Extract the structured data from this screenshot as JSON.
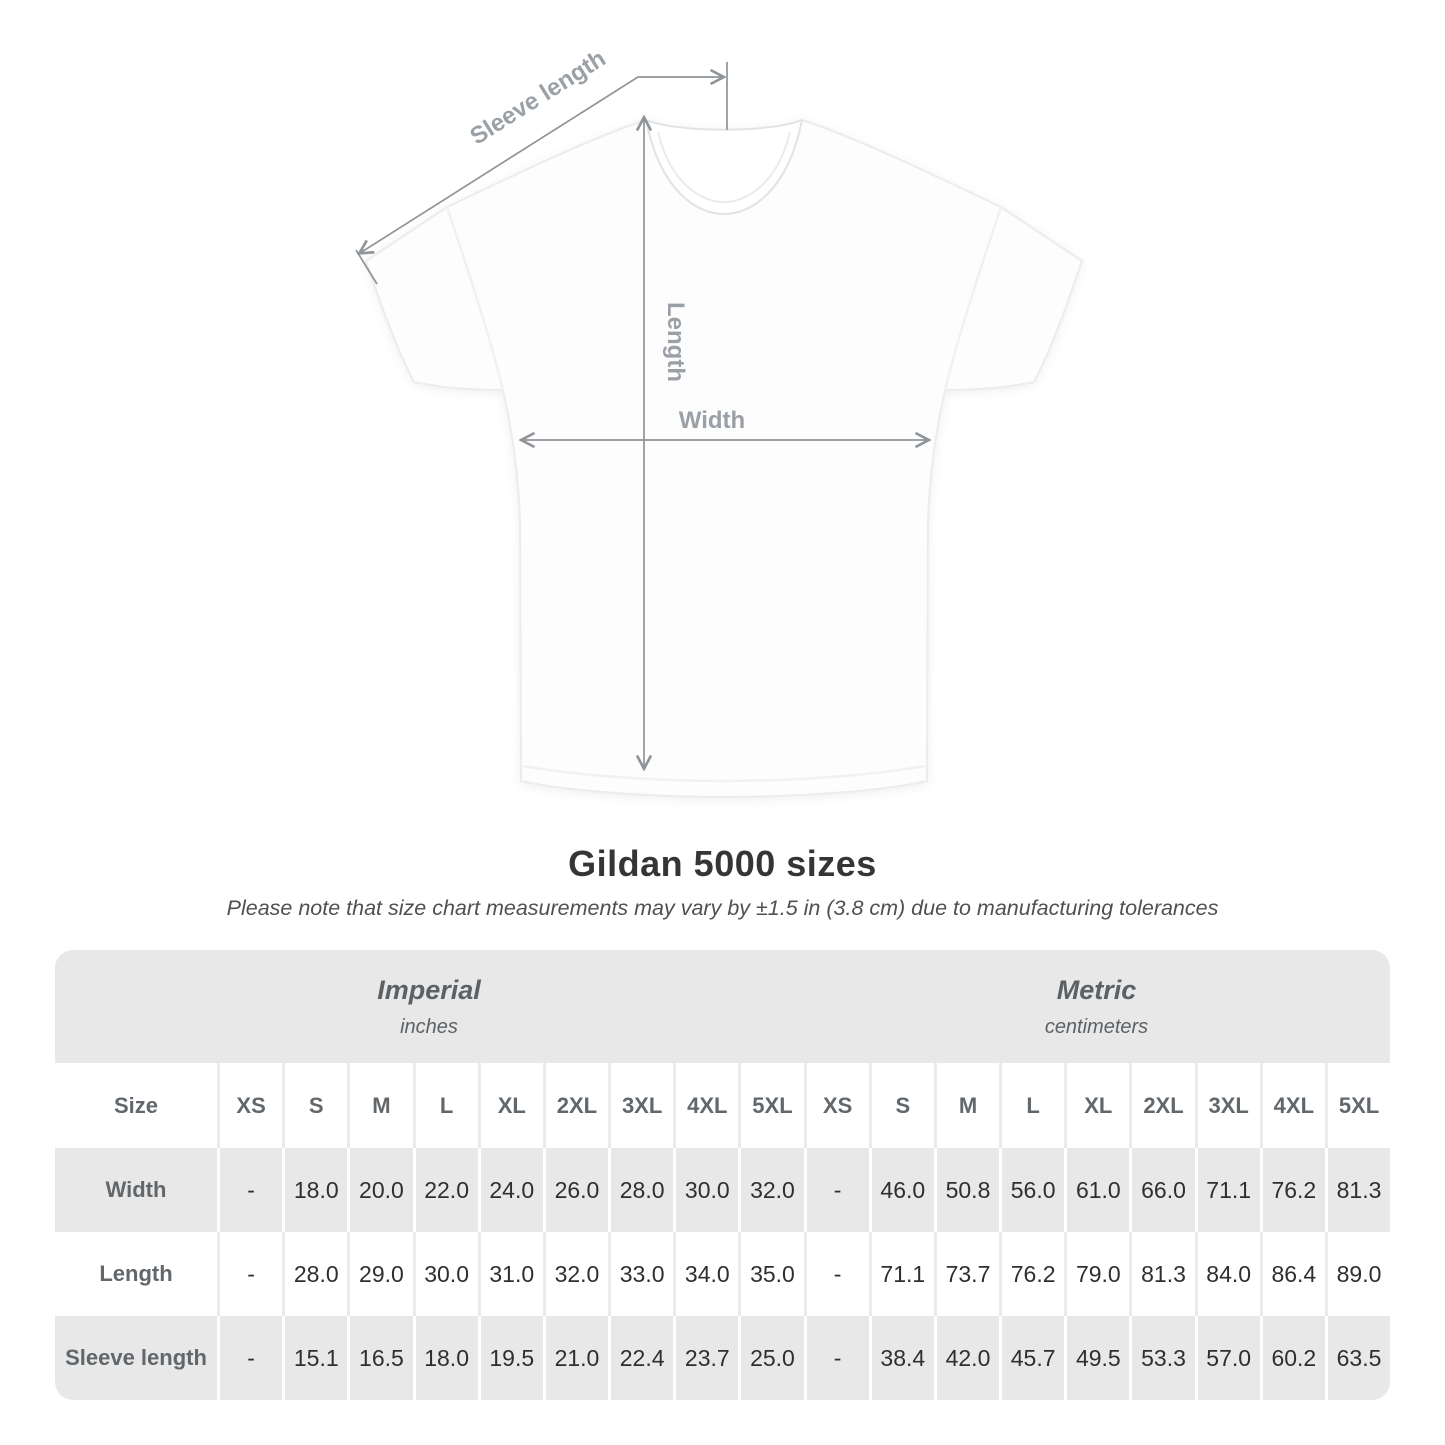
{
  "diagram": {
    "sleeve_label": "Sleeve length",
    "length_label": "Length",
    "width_label": "Width",
    "line_color": "#8f9499",
    "label_color": "#9aa0a6"
  },
  "heading": {
    "title": "Gildan 5000 sizes",
    "subtitle": "Please note that size chart measurements may vary by ±1.5 in (3.8 cm) due to manufacturing tolerances"
  },
  "chart_data": {
    "type": "table",
    "title": "Gildan 5000 sizes",
    "corner_label": "Size",
    "unit_groups": [
      {
        "label": "Imperial",
        "unit": "inches"
      },
      {
        "label": "Metric",
        "unit": "centimeters"
      }
    ],
    "sizes": [
      "XS",
      "S",
      "M",
      "L",
      "XL",
      "2XL",
      "3XL",
      "4XL",
      "5XL"
    ],
    "rows": [
      {
        "label": "Width",
        "imperial": [
          "-",
          "18.0",
          "20.0",
          "22.0",
          "24.0",
          "26.0",
          "28.0",
          "30.0",
          "32.0"
        ],
        "metric": [
          "-",
          "46.0",
          "50.8",
          "56.0",
          "61.0",
          "66.0",
          "71.1",
          "76.2",
          "81.3"
        ]
      },
      {
        "label": "Length",
        "imperial": [
          "-",
          "28.0",
          "29.0",
          "30.0",
          "31.0",
          "32.0",
          "33.0",
          "34.0",
          "35.0"
        ],
        "metric": [
          "-",
          "71.1",
          "73.7",
          "76.2",
          "79.0",
          "81.3",
          "84.0",
          "86.4",
          "89.0"
        ]
      },
      {
        "label": "Sleeve length",
        "imperial": [
          "-",
          "15.1",
          "16.5",
          "18.0",
          "19.5",
          "21.0",
          "22.4",
          "23.7",
          "25.0"
        ],
        "metric": [
          "-",
          "38.4",
          "42.0",
          "45.7",
          "49.5",
          "53.3",
          "57.0",
          "60.2",
          "63.5"
        ]
      }
    ],
    "colors": {
      "band": "#e8e8e8",
      "row_alt": "#e8e8e8",
      "row_base": "#ffffff",
      "header_text": "#62676b",
      "value_text": "#2e2f30"
    }
  }
}
